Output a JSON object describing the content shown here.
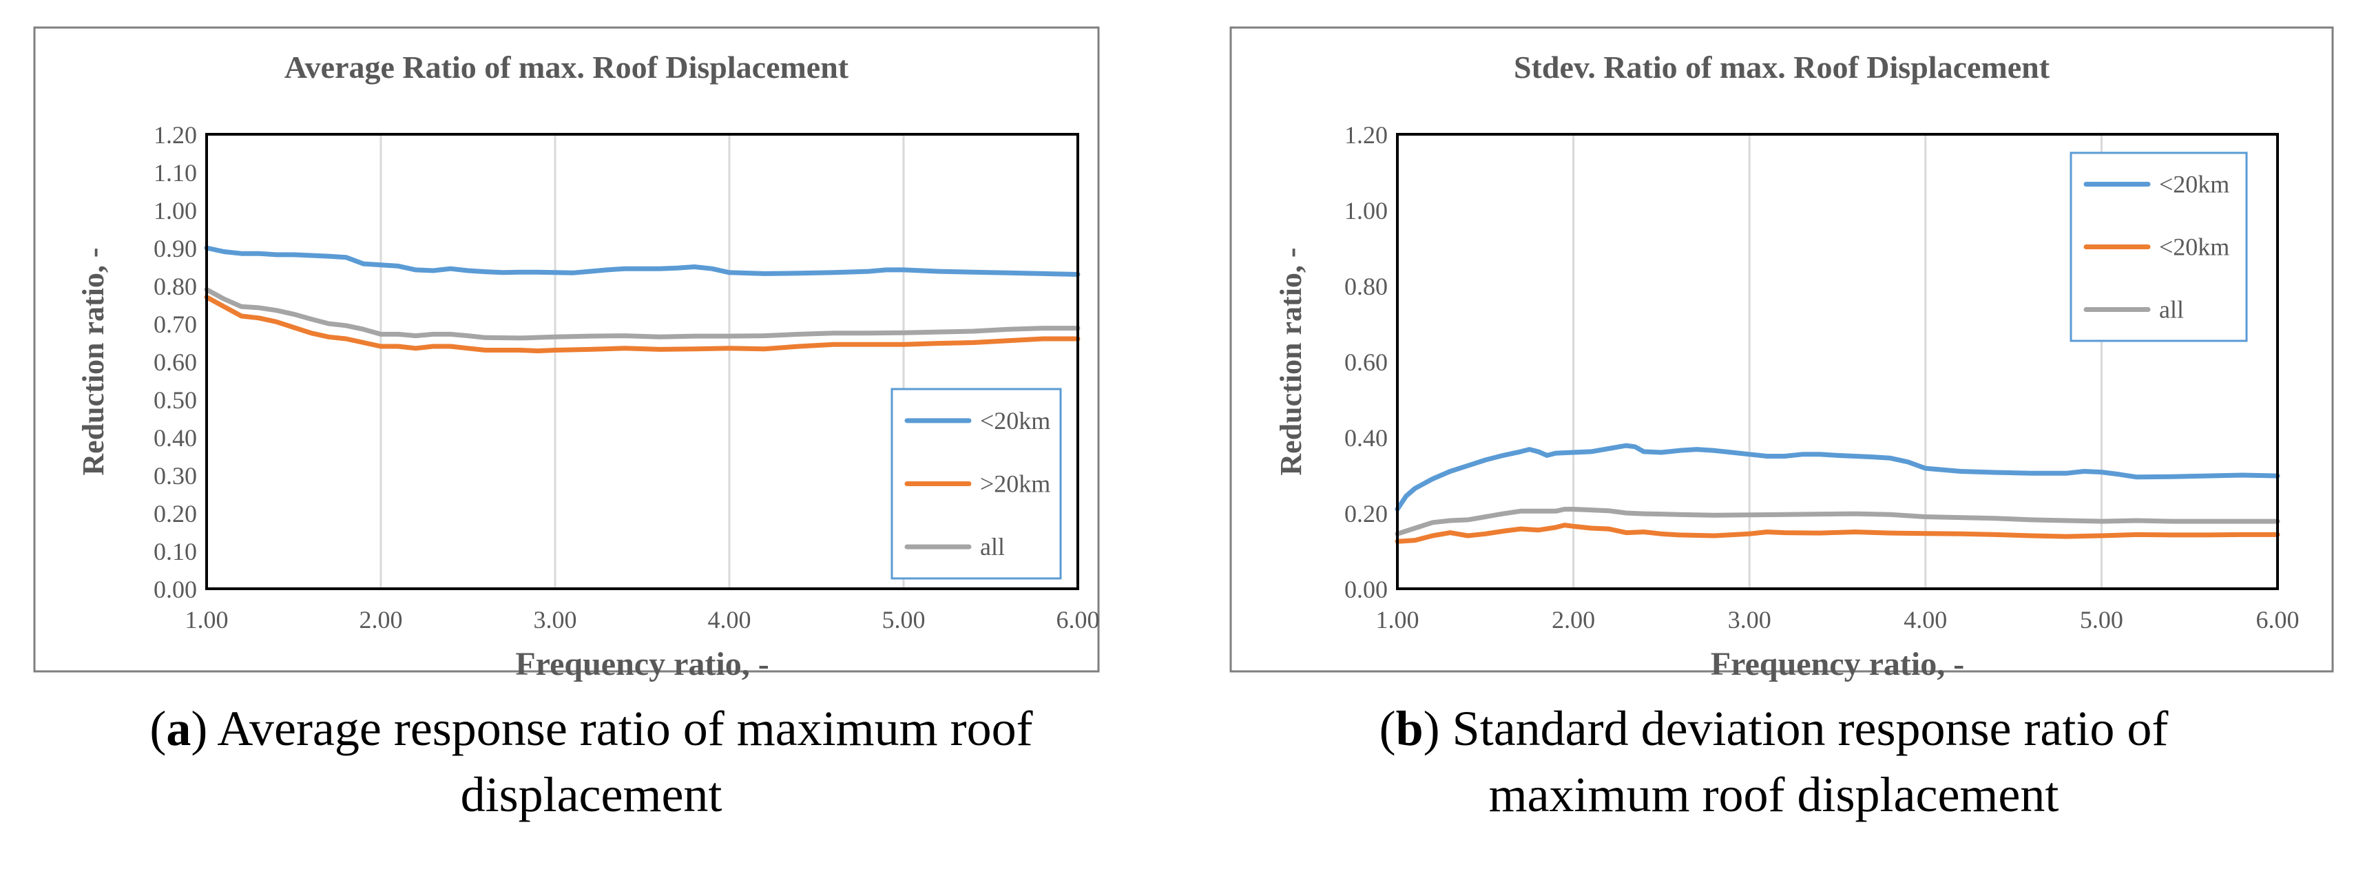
{
  "colors": {
    "series_near": "#5B9BD5",
    "series_far": "#ED7D31",
    "series_all": "#A5A5A5",
    "grid": "#D9D9D9",
    "frame": "#7F7F7F",
    "text": "#595959"
  },
  "chart_data": [
    {
      "type": "line",
      "title": "Average Ratio of max. Roof Displacement",
      "xlabel": "Frequency ratio, -",
      "ylabel": "Reduction ratio, -",
      "xlim": [
        1.0,
        6.0
      ],
      "ylim": [
        0.0,
        1.2
      ],
      "xticks": [
        1.0,
        2.0,
        3.0,
        4.0,
        5.0,
        6.0
      ],
      "xtick_labels": [
        "1.00",
        "2.00",
        "3.00",
        "4.00",
        "5.00",
        "6.00"
      ],
      "yticks": [
        0,
        0.1,
        0.2,
        0.3,
        0.4,
        0.5,
        0.6,
        0.7,
        0.8,
        0.9,
        1.0,
        1.1,
        1.2
      ],
      "ytick_labels": [
        "0.00",
        "0.10",
        "0.20",
        "0.30",
        "0.40",
        "0.50",
        "0.60",
        "0.70",
        "0.80",
        "0.90",
        "1.00",
        "1.10",
        "1.20"
      ],
      "grid": "vertical",
      "legend_position": "bottom-right",
      "series": [
        {
          "name": "<20km",
          "color": "#5B9BD5",
          "x": [
            1.0,
            1.1,
            1.2,
            1.3,
            1.4,
            1.5,
            1.6,
            1.7,
            1.8,
            1.9,
            2.0,
            2.1,
            2.2,
            2.3,
            2.4,
            2.5,
            2.6,
            2.7,
            2.8,
            2.9,
            3.0,
            3.1,
            3.2,
            3.3,
            3.4,
            3.5,
            3.6,
            3.7,
            3.8,
            3.9,
            4.0,
            4.2,
            4.4,
            4.6,
            4.8,
            4.9,
            5.0,
            5.2,
            5.4,
            5.6,
            5.8,
            6.0
          ],
          "y": [
            0.9,
            0.89,
            0.885,
            0.885,
            0.882,
            0.882,
            0.88,
            0.878,
            0.875,
            0.858,
            0.855,
            0.852,
            0.842,
            0.84,
            0.845,
            0.84,
            0.837,
            0.835,
            0.836,
            0.836,
            0.835,
            0.834,
            0.838,
            0.842,
            0.845,
            0.845,
            0.845,
            0.847,
            0.85,
            0.845,
            0.835,
            0.832,
            0.833,
            0.835,
            0.838,
            0.842,
            0.842,
            0.838,
            0.836,
            0.834,
            0.832,
            0.83
          ]
        },
        {
          "name": ">20km",
          "color": "#ED7D31",
          "x": [
            1.0,
            1.1,
            1.2,
            1.3,
            1.4,
            1.5,
            1.6,
            1.7,
            1.8,
            1.9,
            2.0,
            2.1,
            2.2,
            2.3,
            2.4,
            2.5,
            2.6,
            2.7,
            2.8,
            2.9,
            3.0,
            3.2,
            3.4,
            3.6,
            3.8,
            4.0,
            4.2,
            4.4,
            4.6,
            4.8,
            5.0,
            5.2,
            5.4,
            5.6,
            5.8,
            6.0
          ],
          "y": [
            0.77,
            0.745,
            0.72,
            0.715,
            0.705,
            0.69,
            0.675,
            0.665,
            0.66,
            0.65,
            0.64,
            0.64,
            0.635,
            0.64,
            0.64,
            0.635,
            0.63,
            0.63,
            0.63,
            0.628,
            0.63,
            0.632,
            0.635,
            0.632,
            0.633,
            0.635,
            0.633,
            0.64,
            0.645,
            0.645,
            0.645,
            0.648,
            0.65,
            0.655,
            0.66,
            0.66
          ]
        },
        {
          "name": "all",
          "color": "#A5A5A5",
          "x": [
            1.0,
            1.1,
            1.2,
            1.3,
            1.4,
            1.5,
            1.6,
            1.7,
            1.8,
            1.9,
            2.0,
            2.1,
            2.2,
            2.3,
            2.4,
            2.5,
            2.6,
            2.8,
            3.0,
            3.2,
            3.4,
            3.6,
            3.8,
            4.0,
            4.2,
            4.4,
            4.6,
            4.8,
            5.0,
            5.2,
            5.4,
            5.6,
            5.8,
            6.0
          ],
          "y": [
            0.79,
            0.765,
            0.745,
            0.742,
            0.735,
            0.725,
            0.712,
            0.7,
            0.695,
            0.685,
            0.672,
            0.672,
            0.668,
            0.672,
            0.672,
            0.668,
            0.663,
            0.662,
            0.665,
            0.667,
            0.668,
            0.665,
            0.667,
            0.667,
            0.668,
            0.672,
            0.675,
            0.675,
            0.676,
            0.678,
            0.68,
            0.685,
            0.688,
            0.688
          ]
        }
      ]
    },
    {
      "type": "line",
      "title": "Stdev. Ratio of  max. Roof Displacement",
      "xlabel": "Frequency ratio, -",
      "ylabel": "Reduction ratio, -",
      "xlim": [
        1.0,
        6.0
      ],
      "ylim": [
        0.0,
        1.2
      ],
      "xticks": [
        1.0,
        2.0,
        3.0,
        4.0,
        5.0,
        6.0
      ],
      "xtick_labels": [
        "1.00",
        "2.00",
        "3.00",
        "4.00",
        "5.00",
        "6.00"
      ],
      "yticks": [
        0,
        0.2,
        0.4,
        0.6,
        0.8,
        1.0,
        1.2
      ],
      "ytick_labels": [
        "0.00",
        "0.20",
        "0.40",
        "0.60",
        "0.80",
        "1.00",
        "1.20"
      ],
      "grid": "vertical",
      "legend_position": "top-right",
      "series": [
        {
          "name": "<20km",
          "color": "#5B9BD5",
          "x": [
            1.0,
            1.05,
            1.1,
            1.2,
            1.3,
            1.4,
            1.5,
            1.6,
            1.7,
            1.75,
            1.8,
            1.85,
            1.9,
            2.0,
            2.1,
            2.2,
            2.3,
            2.35,
            2.4,
            2.5,
            2.6,
            2.7,
            2.8,
            2.9,
            3.0,
            3.1,
            3.2,
            3.3,
            3.4,
            3.5,
            3.6,
            3.7,
            3.8,
            3.9,
            4.0,
            4.2,
            4.4,
            4.6,
            4.8,
            4.9,
            5.0,
            5.1,
            5.2,
            5.4,
            5.6,
            5.8,
            6.0
          ],
          "y": [
            0.21,
            0.245,
            0.265,
            0.29,
            0.31,
            0.325,
            0.34,
            0.352,
            0.362,
            0.368,
            0.362,
            0.352,
            0.358,
            0.36,
            0.362,
            0.37,
            0.378,
            0.375,
            0.362,
            0.36,
            0.365,
            0.368,
            0.365,
            0.36,
            0.355,
            0.35,
            0.35,
            0.355,
            0.355,
            0.352,
            0.35,
            0.348,
            0.345,
            0.335,
            0.318,
            0.31,
            0.307,
            0.305,
            0.305,
            0.31,
            0.308,
            0.302,
            0.295,
            0.296,
            0.298,
            0.3,
            0.298
          ]
        },
        {
          "name": "<20km",
          "color": "#ED7D31",
          "x": [
            1.0,
            1.1,
            1.2,
            1.3,
            1.4,
            1.5,
            1.6,
            1.7,
            1.8,
            1.9,
            1.95,
            2.0,
            2.1,
            2.2,
            2.3,
            2.4,
            2.5,
            2.6,
            2.8,
            3.0,
            3.1,
            3.2,
            3.4,
            3.6,
            3.8,
            4.0,
            4.2,
            4.4,
            4.6,
            4.8,
            5.0,
            5.2,
            5.4,
            5.6,
            5.8,
            6.0
          ],
          "y": [
            0.125,
            0.128,
            0.14,
            0.148,
            0.14,
            0.145,
            0.152,
            0.158,
            0.155,
            0.162,
            0.168,
            0.165,
            0.16,
            0.158,
            0.148,
            0.15,
            0.145,
            0.142,
            0.14,
            0.145,
            0.15,
            0.148,
            0.147,
            0.15,
            0.147,
            0.146,
            0.145,
            0.143,
            0.14,
            0.138,
            0.14,
            0.143,
            0.142,
            0.142,
            0.143,
            0.143
          ]
        },
        {
          "name": "all",
          "color": "#A5A5A5",
          "x": [
            1.0,
            1.1,
            1.2,
            1.3,
            1.4,
            1.5,
            1.6,
            1.7,
            1.8,
            1.9,
            1.95,
            2.0,
            2.1,
            2.2,
            2.3,
            2.4,
            2.6,
            2.8,
            3.0,
            3.2,
            3.4,
            3.6,
            3.8,
            4.0,
            4.2,
            4.4,
            4.6,
            4.8,
            5.0,
            5.2,
            5.4,
            5.6,
            5.8,
            6.0
          ],
          "y": [
            0.145,
            0.16,
            0.175,
            0.18,
            0.182,
            0.19,
            0.198,
            0.205,
            0.205,
            0.205,
            0.21,
            0.21,
            0.208,
            0.206,
            0.2,
            0.198,
            0.196,
            0.194,
            0.195,
            0.196,
            0.197,
            0.198,
            0.196,
            0.19,
            0.188,
            0.186,
            0.182,
            0.18,
            0.178,
            0.18,
            0.178,
            0.178,
            0.178,
            0.178
          ]
        }
      ]
    }
  ],
  "captions": [
    {
      "label": "a",
      "line1": ") Average response ratio of maximum roof",
      "line2": "displacement"
    },
    {
      "label": "b",
      "line1": ") Standard deviation response ratio of",
      "line2": "maximum roof displacement"
    }
  ]
}
